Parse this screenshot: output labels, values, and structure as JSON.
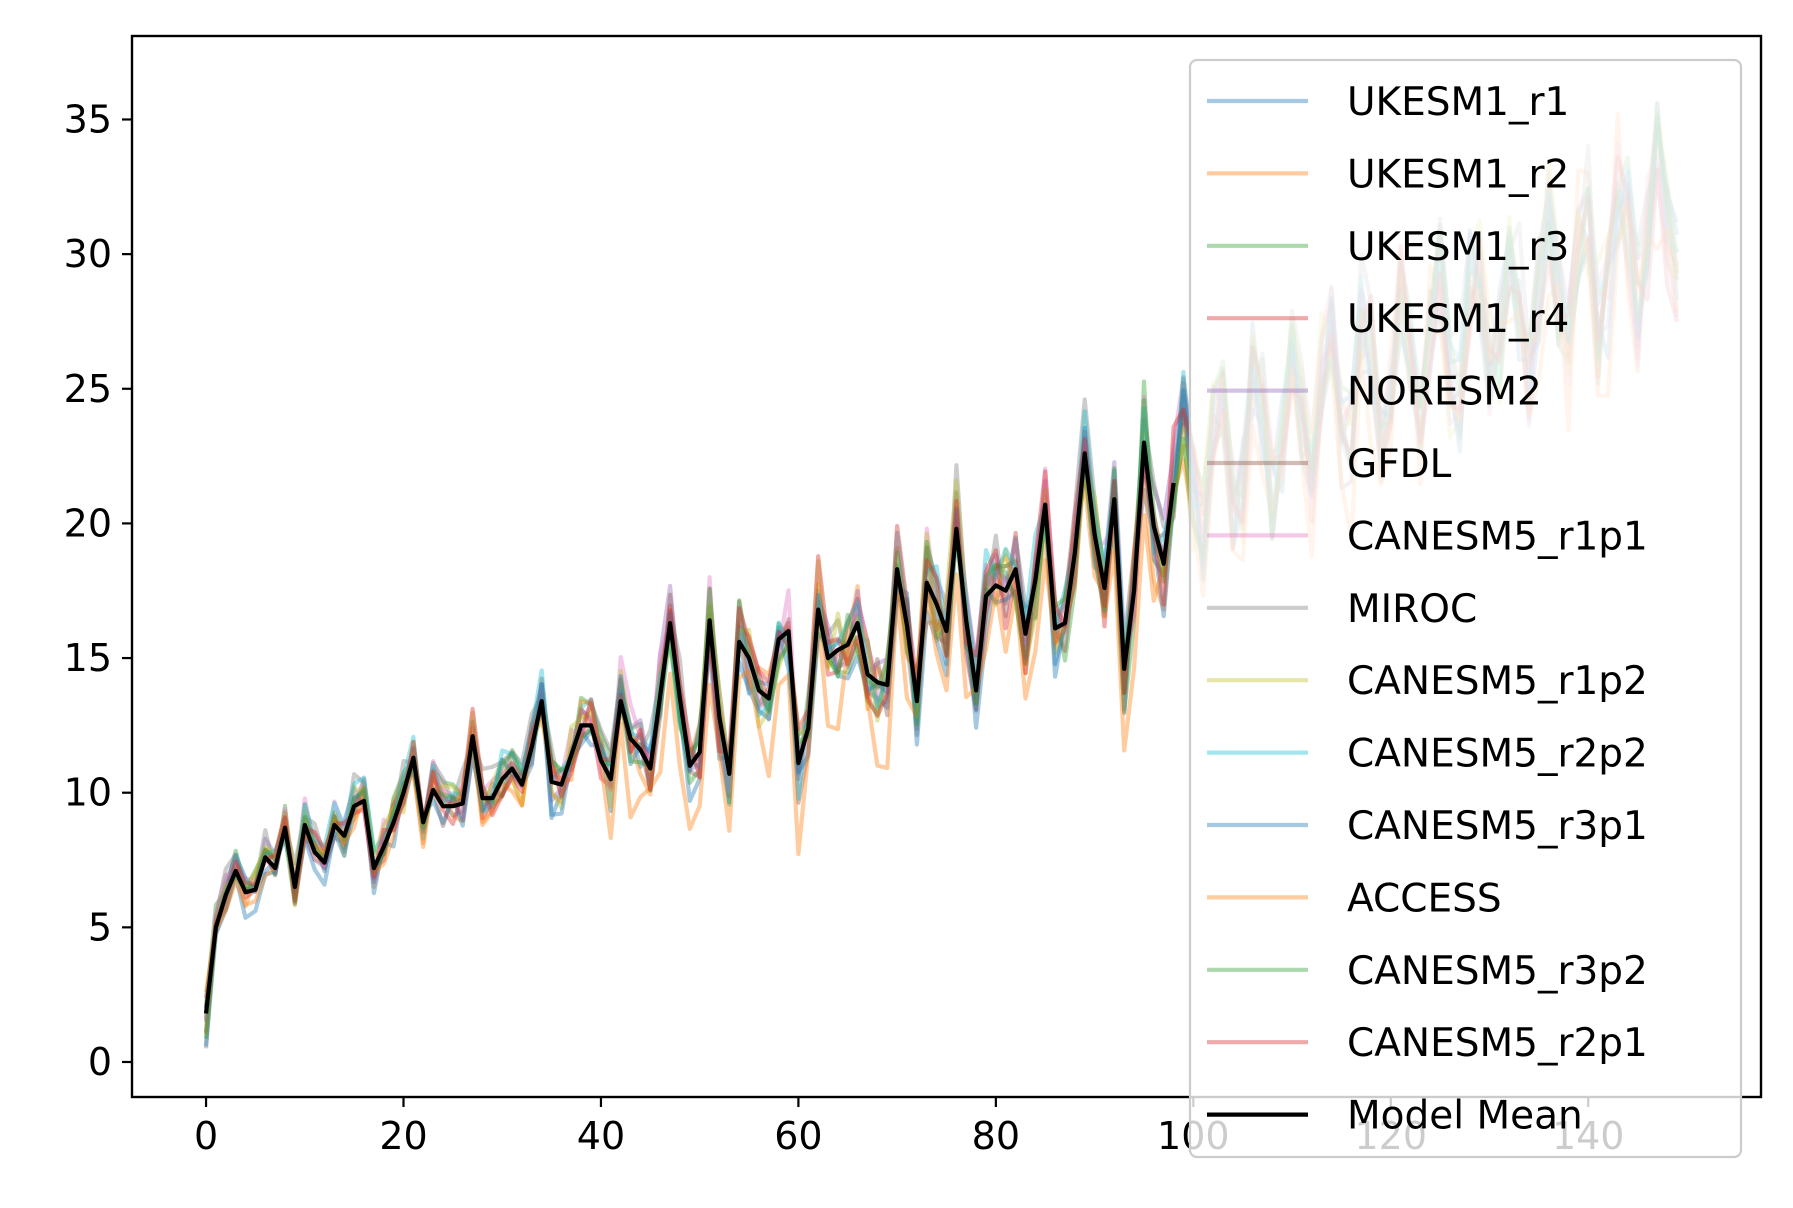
{
  "chart_data": {
    "type": "line",
    "title": "",
    "xlabel": "",
    "ylabel": "",
    "xlim": [
      -7.5,
      157.5
    ],
    "ylim": [
      -1.3,
      38.1
    ],
    "x_ticks": [
      0,
      20,
      40,
      60,
      80,
      100,
      120,
      140
    ],
    "y_ticks": [
      0,
      5,
      10,
      15,
      20,
      25,
      30,
      35
    ],
    "x_tick_labels": [
      "0",
      "20",
      "40",
      "60",
      "80",
      "100",
      "120",
      "140"
    ],
    "y_tick_labels": [
      "0",
      "5",
      "10",
      "15",
      "20",
      "25",
      "30",
      "35"
    ],
    "legend_location": "upper-right",
    "grid": false,
    "series": [
      {
        "name": "UKESM1_r1",
        "color": "#1f77b4",
        "alpha": 0.4
      },
      {
        "name": "UKESM1_r2",
        "color": "#ff7f0e",
        "alpha": 0.4
      },
      {
        "name": "UKESM1_r3",
        "color": "#2ca02c",
        "alpha": 0.4
      },
      {
        "name": "UKESM1_r4",
        "color": "#d62728",
        "alpha": 0.4
      },
      {
        "name": "NORESM2",
        "color": "#9467bd",
        "alpha": 0.4
      },
      {
        "name": "GFDL",
        "color": "#8c564b",
        "alpha": 0.4
      },
      {
        "name": "CANESM5_r1p1",
        "color": "#e377c2",
        "alpha": 0.4
      },
      {
        "name": "MIROC",
        "color": "#7f7f7f",
        "alpha": 0.4
      },
      {
        "name": "CANESM5_r1p2",
        "color": "#bcbd22",
        "alpha": 0.4
      },
      {
        "name": "CANESM5_r2p2",
        "color": "#17becf",
        "alpha": 0.4
      },
      {
        "name": "CANESM5_r3p1",
        "color": "#1f77b4",
        "alpha": 0.4
      },
      {
        "name": "ACCESS",
        "color": "#ff7f0e",
        "alpha": 0.4
      },
      {
        "name": "CANESM5_r3p2",
        "color": "#2ca02c",
        "alpha": 0.4
      },
      {
        "name": "CANESM5_r2p1",
        "color": "#d62728",
        "alpha": 0.4
      },
      {
        "name": "Model Mean",
        "color": "#000000",
        "alpha": 1.0
      }
    ],
    "mean_points": [
      [
        0,
        1.8
      ],
      [
        1,
        5.0
      ],
      [
        2,
        6.2
      ],
      [
        3,
        7.1
      ],
      [
        4,
        6.3
      ],
      [
        5,
        6.4
      ],
      [
        6,
        7.6
      ],
      [
        7,
        7.2
      ],
      [
        8,
        8.7
      ],
      [
        9,
        6.5
      ],
      [
        10,
        8.8
      ],
      [
        11,
        7.8
      ],
      [
        12,
        7.4
      ],
      [
        13,
        8.8
      ],
      [
        14,
        8.4
      ],
      [
        15,
        9.5
      ],
      [
        16,
        9.7
      ],
      [
        17,
        7.2
      ],
      [
        18,
        8.0
      ],
      [
        19,
        8.9
      ],
      [
        20,
        10.0
      ],
      [
        21,
        11.3
      ],
      [
        22,
        8.9
      ],
      [
        23,
        10.1
      ],
      [
        24,
        9.5
      ],
      [
        25,
        9.5
      ],
      [
        26,
        9.6
      ],
      [
        27,
        12.1
      ],
      [
        28,
        9.8
      ],
      [
        29,
        9.8
      ],
      [
        30,
        10.5
      ],
      [
        31,
        10.9
      ],
      [
        32,
        10.3
      ],
      [
        33,
        11.7
      ],
      [
        34,
        13.4
      ],
      [
        35,
        10.4
      ],
      [
        36,
        10.3
      ],
      [
        37,
        11.4
      ],
      [
        38,
        12.5
      ],
      [
        39,
        12.5
      ],
      [
        40,
        11.2
      ],
      [
        41,
        10.5
      ],
      [
        42,
        13.4
      ],
      [
        43,
        12.0
      ],
      [
        44,
        11.6
      ],
      [
        45,
        10.9
      ],
      [
        46,
        13.6
      ],
      [
        47,
        16.3
      ],
      [
        48,
        13.5
      ],
      [
        49,
        11.0
      ],
      [
        50,
        11.5
      ],
      [
        51,
        16.4
      ],
      [
        52,
        12.8
      ],
      [
        53,
        10.7
      ],
      [
        54,
        15.6
      ],
      [
        55,
        15.0
      ],
      [
        56,
        13.8
      ],
      [
        57,
        13.5
      ],
      [
        58,
        15.7
      ],
      [
        59,
        16.0
      ],
      [
        60,
        11.1
      ],
      [
        61,
        12.4
      ],
      [
        62,
        16.8
      ],
      [
        63,
        15.0
      ],
      [
        64,
        15.3
      ],
      [
        65,
        15.5
      ],
      [
        66,
        16.3
      ],
      [
        67,
        14.4
      ],
      [
        68,
        14.1
      ],
      [
        69,
        14.0
      ],
      [
        70,
        18.3
      ],
      [
        71,
        16.2
      ],
      [
        72,
        13.4
      ],
      [
        73,
        17.8
      ],
      [
        74,
        17.0
      ],
      [
        75,
        16.0
      ],
      [
        76,
        19.8
      ],
      [
        77,
        16.4
      ],
      [
        78,
        13.8
      ],
      [
        79,
        17.3
      ],
      [
        80,
        17.7
      ],
      [
        81,
        17.5
      ],
      [
        82,
        18.3
      ],
      [
        83,
        15.9
      ],
      [
        84,
        17.9
      ],
      [
        85,
        20.7
      ],
      [
        86,
        16.1
      ],
      [
        87,
        16.3
      ],
      [
        88,
        18.9
      ],
      [
        89,
        22.6
      ],
      [
        90,
        19.6
      ],
      [
        91,
        17.6
      ],
      [
        92,
        20.9
      ],
      [
        93,
        14.6
      ],
      [
        94,
        17.5
      ],
      [
        95,
        23.0
      ],
      [
        96,
        19.9
      ],
      [
        97,
        18.5
      ],
      [
        98,
        21.5
      ]
    ]
  }
}
